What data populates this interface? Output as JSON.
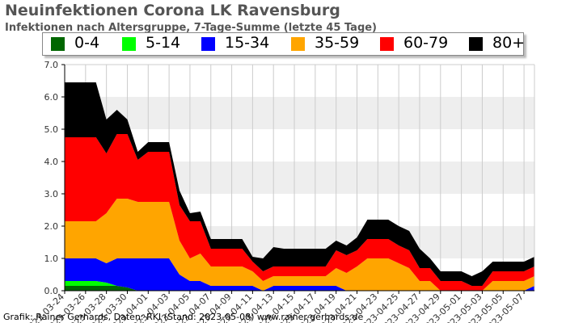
{
  "title": "Neuinfektionen Corona LK Ravensburg",
  "subtitle": "Infektionen nach Altersgruppe, 7-Tage-Summe (letzte 45 Tage)",
  "credit": "Grafik: Rainer Gerhards, Daten: RKI (Stand: 2023-05-08) www.rainer-gerhards.de",
  "colors": {
    "0-4": "#006600",
    "5-14": "#00ff00",
    "15-34": "#0000ff",
    "35-59": "#ffa500",
    "60-79": "#ff0000",
    "80+": "#000000",
    "band": "#eeeeee",
    "grid": "#cccccc"
  },
  "chart_data": {
    "type": "area",
    "stacked": true,
    "ylim": [
      0,
      7
    ],
    "yticks": [
      "0.0",
      "1.0",
      "2.0",
      "3.0",
      "4.0",
      "5.0",
      "6.0",
      "7.0"
    ],
    "legend": "top",
    "x": [
      "2023-03-24",
      "2023-03-25",
      "2023-03-26",
      "2023-03-27",
      "2023-03-28",
      "2023-03-29",
      "2023-03-30",
      "2023-03-31",
      "2023-04-01",
      "2023-04-02",
      "2023-04-03",
      "2023-04-04",
      "2023-04-05",
      "2023-04-06",
      "2023-04-07",
      "2023-04-08",
      "2023-04-09",
      "2023-04-10",
      "2023-04-11",
      "2023-04-12",
      "2023-04-13",
      "2023-04-14",
      "2023-04-15",
      "2023-04-16",
      "2023-04-17",
      "2023-04-18",
      "2023-04-19",
      "2023-04-20",
      "2023-04-21",
      "2023-04-22",
      "2023-04-23",
      "2023-04-24",
      "2023-04-25",
      "2023-04-26",
      "2023-04-27",
      "2023-04-28",
      "2023-04-29",
      "2023-04-30",
      "2023-05-01",
      "2023-05-02",
      "2023-05-03",
      "2023-05-04",
      "2023-05-05",
      "2023-05-06",
      "2023-05-07",
      "2023-05-08"
    ],
    "xticks": [
      "2023-03-24",
      "2023-03-26",
      "2023-03-28",
      "2023-03-30",
      "2023-04-01",
      "2023-04-03",
      "2023-04-05",
      "2023-04-07",
      "2023-04-09",
      "2023-04-11",
      "2023-04-13",
      "2023-04-15",
      "2023-04-17",
      "2023-04-19",
      "2023-04-21",
      "2023-04-23",
      "2023-04-25",
      "2023-04-27",
      "2023-04-29",
      "2023-05-01",
      "2023-05-03",
      "2023-05-05",
      "2023-05-07"
    ],
    "series": [
      {
        "name": "0-4",
        "values": [
          0.15,
          0.15,
          0.15,
          0.15,
          0.15,
          0.15,
          0.1,
          0,
          0,
          0,
          0,
          0,
          0,
          0,
          0,
          0,
          0,
          0,
          0,
          0,
          0,
          0,
          0,
          0,
          0,
          0,
          0,
          0,
          0,
          0,
          0,
          0,
          0,
          0,
          0,
          0,
          0,
          0,
          0,
          0,
          0,
          0,
          0,
          0,
          0,
          0
        ]
      },
      {
        "name": "5-14",
        "values": [
          0.15,
          0.15,
          0.15,
          0.15,
          0.1,
          0,
          0,
          0,
          0,
          0,
          0,
          0,
          0,
          0,
          0,
          0,
          0,
          0,
          0,
          0,
          0,
          0,
          0,
          0,
          0,
          0,
          0,
          0,
          0,
          0,
          0,
          0,
          0,
          0,
          0,
          0,
          0,
          0,
          0,
          0,
          0,
          0,
          0,
          0,
          0,
          0
        ]
      },
      {
        "name": "15-34",
        "values": [
          0.7,
          0.7,
          0.7,
          0.7,
          0.6,
          0.85,
          0.9,
          1.0,
          1.0,
          1.0,
          1.0,
          0.5,
          0.3,
          0.3,
          0.15,
          0.15,
          0.15,
          0.15,
          0.15,
          0.0,
          0.15,
          0.15,
          0.15,
          0.15,
          0.15,
          0.15,
          0.15,
          0.0,
          0.0,
          0.0,
          0.0,
          0.0,
          0.0,
          0.0,
          0.0,
          0.0,
          0.0,
          0.0,
          0.0,
          0.0,
          0.0,
          0.0,
          0.0,
          0.0,
          0.0,
          0.15
        ]
      },
      {
        "name": "35-59",
        "values": [
          1.15,
          1.15,
          1.15,
          1.15,
          1.55,
          1.85,
          1.85,
          1.75,
          1.75,
          1.75,
          1.75,
          1.05,
          0.7,
          0.85,
          0.6,
          0.6,
          0.6,
          0.6,
          0.45,
          0.3,
          0.3,
          0.3,
          0.3,
          0.3,
          0.3,
          0.3,
          0.55,
          0.55,
          0.75,
          1.0,
          1.0,
          1.0,
          0.85,
          0.7,
          0.3,
          0.3,
          0.0,
          0.0,
          0.0,
          0.0,
          0.0,
          0.3,
          0.3,
          0.3,
          0.3,
          0.3
        ]
      },
      {
        "name": "60-79",
        "values": [
          2.6,
          2.6,
          2.6,
          2.6,
          1.85,
          2.0,
          2.0,
          1.3,
          1.55,
          1.55,
          1.55,
          1.1,
          1.15,
          1.0,
          0.55,
          0.55,
          0.55,
          0.55,
          0.3,
          0.3,
          0.3,
          0.3,
          0.3,
          0.3,
          0.3,
          0.3,
          0.55,
          0.55,
          0.5,
          0.6,
          0.6,
          0.6,
          0.55,
          0.55,
          0.4,
          0.4,
          0.3,
          0.3,
          0.3,
          0.15,
          0.15,
          0.3,
          0.3,
          0.3,
          0.3,
          0.3
        ]
      },
      {
        "name": "80+",
        "values": [
          1.7,
          1.7,
          1.7,
          1.7,
          1.05,
          0.75,
          0.45,
          0.25,
          0.3,
          0.3,
          0.3,
          0.45,
          0.25,
          0.3,
          0.3,
          0.3,
          0.3,
          0.3,
          0.15,
          0.4,
          0.6,
          0.55,
          0.55,
          0.55,
          0.55,
          0.55,
          0.3,
          0.3,
          0.4,
          0.6,
          0.6,
          0.6,
          0.6,
          0.6,
          0.6,
          0.3,
          0.3,
          0.3,
          0.3,
          0.3,
          0.45,
          0.3,
          0.3,
          0.3,
          0.3,
          0.3
        ]
      }
    ]
  }
}
